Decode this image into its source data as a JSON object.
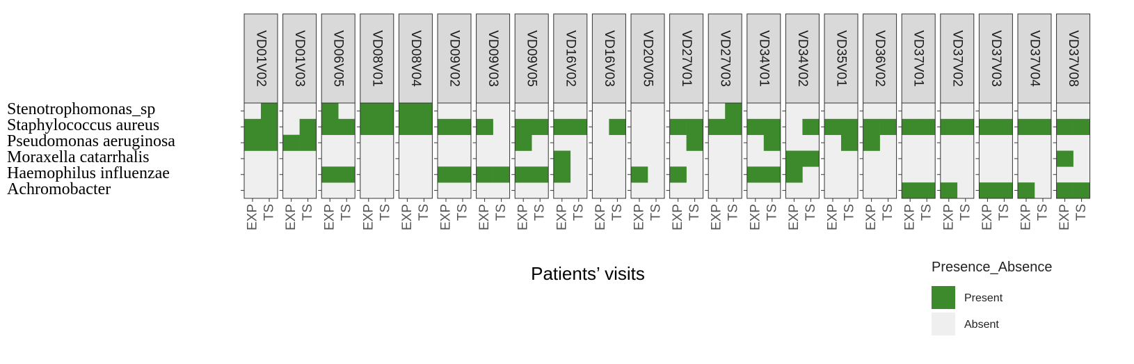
{
  "chart_data": {
    "type": "heatmap",
    "xlabel": "Patients’ visits",
    "facets": [
      "VD01V02",
      "VD01V03",
      "VD06V05",
      "VD08V01",
      "VD08V04",
      "VD09V02",
      "VD09V03",
      "VD09V05",
      "VD16V02",
      "VD16V03",
      "VD20V05",
      "VD27V01",
      "VD27V03",
      "VD34V01",
      "VD34V02",
      "VD35V01",
      "VD36V02",
      "VD37V01",
      "VD37V02",
      "VD37V03",
      "VD37V04",
      "VD37V08"
    ],
    "columns": [
      "EXP",
      "TS"
    ],
    "rows": [
      "Stenotrophomonas_sp",
      "Staphylococcus aureus",
      "Pseudomonas aeruginosa",
      "Moraxella catarrhalis",
      "Haemophilus influenzae",
      "Achromobacter"
    ],
    "presence": {
      "VD01V02": [
        [
          0,
          1
        ],
        [
          1,
          1
        ],
        [
          1,
          1
        ],
        [
          0,
          0
        ],
        [
          0,
          0
        ],
        [
          0,
          0
        ]
      ],
      "VD01V03": [
        [
          0,
          0
        ],
        [
          0,
          1
        ],
        [
          1,
          1
        ],
        [
          0,
          0
        ],
        [
          0,
          0
        ],
        [
          0,
          0
        ]
      ],
      "VD06V05": [
        [
          1,
          0
        ],
        [
          1,
          1
        ],
        [
          0,
          0
        ],
        [
          0,
          0
        ],
        [
          1,
          1
        ],
        [
          0,
          0
        ]
      ],
      "VD08V01": [
        [
          1,
          1
        ],
        [
          1,
          1
        ],
        [
          0,
          0
        ],
        [
          0,
          0
        ],
        [
          0,
          0
        ],
        [
          0,
          0
        ]
      ],
      "VD08V04": [
        [
          1,
          1
        ],
        [
          1,
          1
        ],
        [
          0,
          0
        ],
        [
          0,
          0
        ],
        [
          0,
          0
        ],
        [
          0,
          0
        ]
      ],
      "VD09V02": [
        [
          0,
          0
        ],
        [
          1,
          1
        ],
        [
          0,
          0
        ],
        [
          0,
          0
        ],
        [
          1,
          1
        ],
        [
          0,
          0
        ]
      ],
      "VD09V03": [
        [
          0,
          0
        ],
        [
          1,
          0
        ],
        [
          0,
          0
        ],
        [
          0,
          0
        ],
        [
          1,
          1
        ],
        [
          0,
          0
        ]
      ],
      "VD09V05": [
        [
          0,
          0
        ],
        [
          1,
          1
        ],
        [
          1,
          0
        ],
        [
          0,
          0
        ],
        [
          1,
          1
        ],
        [
          0,
          0
        ]
      ],
      "VD16V02": [
        [
          0,
          0
        ],
        [
          1,
          1
        ],
        [
          0,
          0
        ],
        [
          1,
          0
        ],
        [
          1,
          0
        ],
        [
          0,
          0
        ]
      ],
      "VD16V03": [
        [
          0,
          0
        ],
        [
          0,
          1
        ],
        [
          0,
          0
        ],
        [
          0,
          0
        ],
        [
          0,
          0
        ],
        [
          0,
          0
        ]
      ],
      "VD20V05": [
        [
          0,
          0
        ],
        [
          0,
          0
        ],
        [
          0,
          0
        ],
        [
          0,
          0
        ],
        [
          1,
          0
        ],
        [
          0,
          0
        ]
      ],
      "VD27V01": [
        [
          0,
          0
        ],
        [
          1,
          1
        ],
        [
          0,
          1
        ],
        [
          0,
          0
        ],
        [
          1,
          0
        ],
        [
          0,
          0
        ]
      ],
      "VD27V03": [
        [
          0,
          1
        ],
        [
          1,
          1
        ],
        [
          0,
          0
        ],
        [
          0,
          0
        ],
        [
          0,
          0
        ],
        [
          0,
          0
        ]
      ],
      "VD34V01": [
        [
          0,
          0
        ],
        [
          1,
          1
        ],
        [
          0,
          1
        ],
        [
          0,
          0
        ],
        [
          1,
          1
        ],
        [
          0,
          0
        ]
      ],
      "VD34V02": [
        [
          0,
          0
        ],
        [
          0,
          1
        ],
        [
          0,
          0
        ],
        [
          1,
          1
        ],
        [
          1,
          0
        ],
        [
          0,
          0
        ]
      ],
      "VD35V01": [
        [
          0,
          0
        ],
        [
          1,
          1
        ],
        [
          0,
          1
        ],
        [
          0,
          0
        ],
        [
          0,
          0
        ],
        [
          0,
          0
        ]
      ],
      "VD36V02": [
        [
          0,
          0
        ],
        [
          1,
          1
        ],
        [
          1,
          0
        ],
        [
          0,
          0
        ],
        [
          0,
          0
        ],
        [
          0,
          0
        ]
      ],
      "VD37V01": [
        [
          0,
          0
        ],
        [
          1,
          1
        ],
        [
          0,
          0
        ],
        [
          0,
          0
        ],
        [
          0,
          0
        ],
        [
          1,
          1
        ]
      ],
      "VD37V02": [
        [
          0,
          0
        ],
        [
          1,
          1
        ],
        [
          0,
          0
        ],
        [
          0,
          0
        ],
        [
          0,
          0
        ],
        [
          1,
          0
        ]
      ],
      "VD37V03": [
        [
          0,
          0
        ],
        [
          1,
          1
        ],
        [
          0,
          0
        ],
        [
          0,
          0
        ],
        [
          0,
          0
        ],
        [
          1,
          1
        ]
      ],
      "VD37V04": [
        [
          0,
          0
        ],
        [
          1,
          1
        ],
        [
          0,
          0
        ],
        [
          0,
          0
        ],
        [
          0,
          0
        ],
        [
          1,
          0
        ]
      ],
      "VD37V08": [
        [
          0,
          0
        ],
        [
          1,
          1
        ],
        [
          0,
          0
        ],
        [
          1,
          0
        ],
        [
          0,
          0
        ],
        [
          1,
          1
        ]
      ]
    },
    "legend": {
      "title": "Presence_Absence",
      "position": "bottom-right",
      "entries": [
        {
          "label": "Present",
          "color": "#3d8a2c"
        },
        {
          "label": "Absent",
          "color": "#efefef"
        }
      ]
    },
    "colors": {
      "present": "#3d8a2c",
      "absent": "#efefef",
      "strip": "#d9d9d9",
      "border": "#333333"
    }
  }
}
